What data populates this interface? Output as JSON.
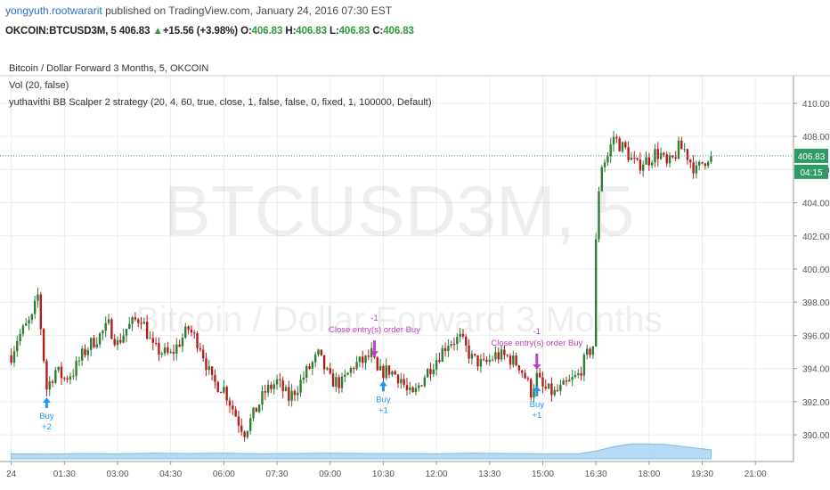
{
  "header": {
    "user": "yongyuth.rootwararit",
    "published_text": " published on TradingView.com, January 24, 2016 07:30 EST"
  },
  "quote_bar": {
    "symbol": "OKCOIN:BTCUSD3M, 5",
    "last": "406.83",
    "arrow": "▲",
    "change": "+15.56 (+3.98%)",
    "o_label": "O:",
    "o": "406.83",
    "h_label": "H:",
    "h": "406.83",
    "l_label": "L:",
    "l": "406.83",
    "c_label": "C:",
    "c": "406.83"
  },
  "legend": {
    "title": "Bitcoin / Dollar Forward 3 Months, 5, OKCOIN",
    "volume": "Vol (20, false)",
    "strategy": "yuthavithi BB Scalper 2 strategy (20, 4, 60, true, close, 1, false, false, 0, fixed, 1, 100000, Default)"
  },
  "watermark": {
    "big": "BTCUSD3M, 5",
    "sub": "Bitcoin / Dollar Forward 3 Months"
  },
  "colors": {
    "up": "#2e7d32",
    "down": "#b71c1c",
    "buy_signal": "#2196f3",
    "close_signal": "#c040c0",
    "volume_area": "#a9d4f3",
    "last_price": "#2e9b66"
  },
  "price_axis": {
    "last_price_label": "406.83",
    "countdown_label": "04:15"
  },
  "chart_data": {
    "type": "candlestick",
    "ylim": [
      388.5,
      411.5
    ],
    "y_ticks": [
      390,
      392,
      394,
      396,
      398,
      400,
      402,
      404,
      406,
      408,
      410
    ],
    "y_tick_labels": [
      "390.00",
      "392.00",
      "394.00",
      "396.00",
      "398.00",
      "400.00",
      "402.00",
      "404.00",
      "406.00",
      "408.00",
      "410.00"
    ],
    "x_range_minutes": [
      -10,
      1320
    ],
    "x_ticks_minutes": [
      0,
      90,
      180,
      270,
      360,
      450,
      540,
      630,
      720,
      810,
      900,
      990,
      1080,
      1170,
      1260
    ],
    "x_tick_labels": [
      "24",
      "01:30",
      "03:00",
      "04:30",
      "06:00",
      "07:30",
      "09:00",
      "10:30",
      "12:00",
      "13:30",
      "15:00",
      "16:30",
      "18:00",
      "19:30",
      "21:00"
    ],
    "last_price": 406.83,
    "price_path": [
      [
        0,
        394.8
      ],
      [
        10,
        395.8
      ],
      [
        20,
        396.3
      ],
      [
        35,
        397.0
      ],
      [
        45,
        398.4
      ],
      [
        55,
        394.6
      ],
      [
        60,
        392.8
      ],
      [
        75,
        393.9
      ],
      [
        90,
        393.4
      ],
      [
        105,
        393.8
      ],
      [
        120,
        394.8
      ],
      [
        135,
        395.5
      ],
      [
        150,
        396.0
      ],
      [
        165,
        396.6
      ],
      [
        180,
        395.5
      ],
      [
        195,
        396.4
      ],
      [
        210,
        396.9
      ],
      [
        220,
        397.1
      ],
      [
        240,
        395.2
      ],
      [
        270,
        394.8
      ],
      [
        300,
        396.4
      ],
      [
        320,
        395.4
      ],
      [
        340,
        393.2
      ],
      [
        360,
        392.8
      ],
      [
        375,
        391.6
      ],
      [
        385,
        390.8
      ],
      [
        395,
        390.2
      ],
      [
        410,
        391.2
      ],
      [
        430,
        392.6
      ],
      [
        450,
        393.2
      ],
      [
        470,
        392.2
      ],
      [
        485,
        392.9
      ],
      [
        500,
        393.8
      ],
      [
        520,
        394.8
      ],
      [
        540,
        393.3
      ],
      [
        560,
        393.1
      ],
      [
        580,
        394.2
      ],
      [
        600,
        394.5
      ],
      [
        610,
        394.9
      ],
      [
        620,
        393.7
      ],
      [
        640,
        393.9
      ],
      [
        660,
        393.4
      ],
      [
        670,
        392.6
      ],
      [
        680,
        392.3
      ],
      [
        700,
        393.6
      ],
      [
        720,
        394.6
      ],
      [
        740,
        395.6
      ],
      [
        760,
        395.8
      ],
      [
        780,
        394.6
      ],
      [
        800,
        394.2
      ],
      [
        820,
        394.8
      ],
      [
        840,
        394.7
      ],
      [
        860,
        394.2
      ],
      [
        870,
        393.5
      ],
      [
        880,
        392.6
      ],
      [
        890,
        393.5
      ],
      [
        900,
        392.8
      ],
      [
        920,
        392.5
      ],
      [
        940,
        393.0
      ],
      [
        960,
        393.6
      ],
      [
        975,
        394.8
      ],
      [
        985,
        395.4
      ],
      [
        992,
        404.0
      ],
      [
        1000,
        406.3
      ],
      [
        1010,
        406.8
      ],
      [
        1020,
        408.0
      ],
      [
        1030,
        407.5
      ],
      [
        1040,
        407.2
      ],
      [
        1050,
        406.6
      ],
      [
        1060,
        406.2
      ],
      [
        1070,
        406.5
      ],
      [
        1080,
        406.6
      ],
      [
        1090,
        407.0
      ],
      [
        1100,
        406.9
      ],
      [
        1110,
        406.2
      ],
      [
        1120,
        406.6
      ],
      [
        1130,
        407.3
      ],
      [
        1140,
        407.2
      ],
      [
        1150,
        406.5
      ],
      [
        1160,
        405.9
      ],
      [
        1170,
        406.4
      ],
      [
        1180,
        406.8
      ],
      [
        1185,
        406.83
      ]
    ],
    "volume_profile": [
      [
        0,
        0.14
      ],
      [
        60,
        0.13
      ],
      [
        120,
        0.15
      ],
      [
        180,
        0.14
      ],
      [
        240,
        0.16
      ],
      [
        300,
        0.15
      ],
      [
        360,
        0.16
      ],
      [
        420,
        0.14
      ],
      [
        480,
        0.15
      ],
      [
        540,
        0.16
      ],
      [
        600,
        0.15
      ],
      [
        660,
        0.15
      ],
      [
        720,
        0.14
      ],
      [
        780,
        0.16
      ],
      [
        840,
        0.15
      ],
      [
        900,
        0.14
      ],
      [
        960,
        0.14
      ],
      [
        990,
        0.22
      ],
      [
        1020,
        0.34
      ],
      [
        1050,
        0.42
      ],
      [
        1080,
        0.42
      ],
      [
        1110,
        0.4
      ],
      [
        1140,
        0.34
      ],
      [
        1170,
        0.28
      ],
      [
        1185,
        0.25
      ]
    ],
    "signals": [
      {
        "kind": "buy",
        "time": 60,
        "label": "Buy",
        "qty": "+2"
      },
      {
        "kind": "close",
        "time": 615,
        "label": "Close entry(s) order Buy",
        "qty": "-1"
      },
      {
        "kind": "buy",
        "time": 630,
        "label": "Buy",
        "qty": "+1"
      },
      {
        "kind": "close",
        "time": 890,
        "label": "Close entry(s) order Buy",
        "qty": "-1"
      },
      {
        "kind": "buy",
        "time": 890,
        "label": "Buy",
        "qty": "+1"
      }
    ]
  }
}
